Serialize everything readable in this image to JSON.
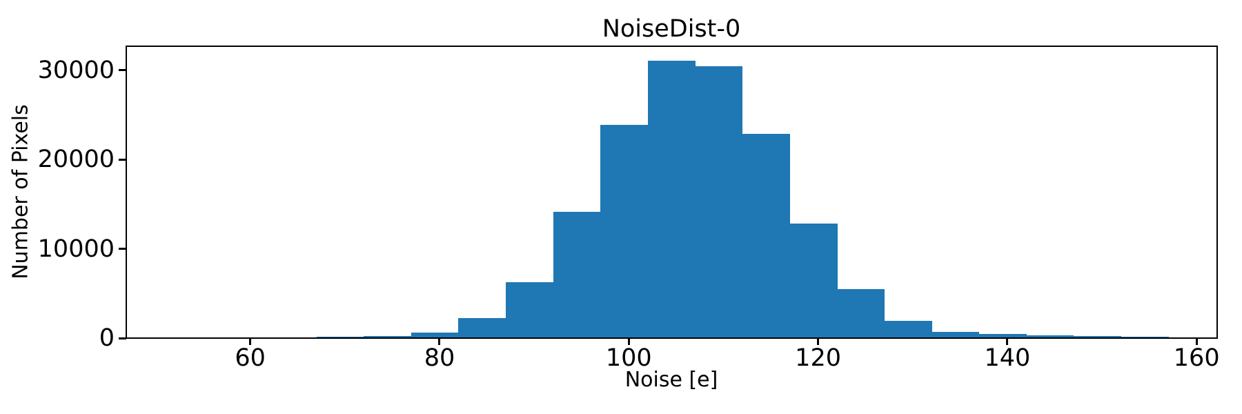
{
  "figure": {
    "background_color": "#ffffff",
    "bar_color": "#1f77b4",
    "axis_color": "#000000",
    "text_color": "#000000"
  },
  "chart_data": {
    "type": "bar",
    "subtype": "histogram",
    "title": "NoiseDist-0",
    "xlabel": "Noise [e]",
    "ylabel": "Number of Pixels",
    "xlim": [
      46.9,
      162.1
    ],
    "ylim": [
      0,
      32700
    ],
    "xticks": [
      60,
      80,
      100,
      120,
      140,
      160
    ],
    "yticks": [
      0,
      10000,
      20000,
      30000
    ],
    "grid": false,
    "legend_position": "none",
    "bin_width": 5,
    "bin_edges": [
      67,
      72,
      77,
      82,
      87,
      92,
      97,
      102,
      107,
      112,
      117,
      122,
      127,
      132,
      137,
      142,
      147,
      152,
      157
    ],
    "counts": [
      170,
      260,
      600,
      2250,
      6300,
      14150,
      23870,
      31040,
      30430,
      22900,
      12830,
      5460,
      1920,
      680,
      440,
      330,
      250,
      170
    ]
  }
}
